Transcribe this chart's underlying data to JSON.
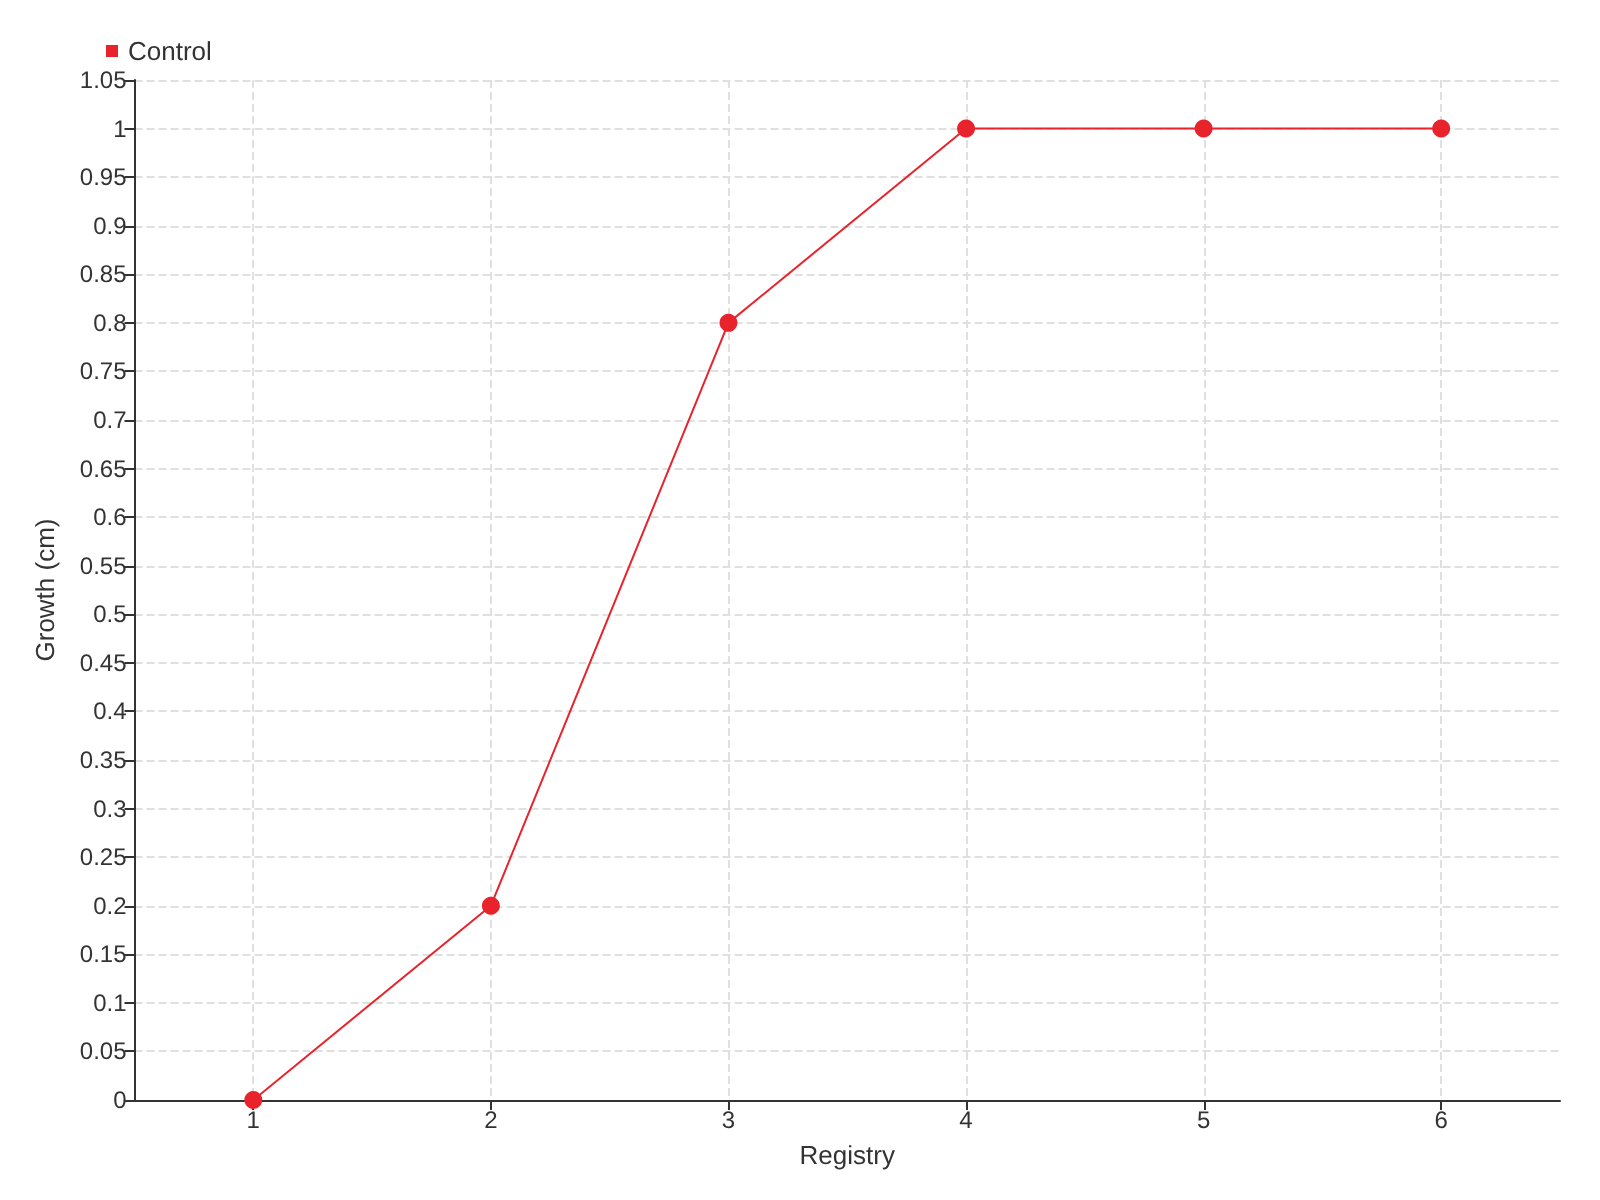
{
  "chart_data": {
    "type": "line",
    "xlabel": "Registry",
    "ylabel": "Growth (cm)",
    "x": [
      1,
      2,
      3,
      4,
      5,
      6
    ],
    "series": [
      {
        "name": "Control",
        "color": "#e8232b",
        "values": [
          0,
          0.2,
          0.8,
          1,
          1,
          1
        ]
      }
    ],
    "xlim": [
      0.5,
      6.5
    ],
    "xticks": [
      1,
      2,
      3,
      4,
      5,
      6
    ],
    "ylim": [
      0,
      1.05
    ],
    "yticks": [
      0,
      0.05,
      0.1,
      0.15,
      0.2,
      0.25,
      0.3,
      0.35,
      0.4,
      0.45,
      0.5,
      0.55,
      0.6,
      0.65,
      0.7,
      0.75,
      0.8,
      0.85,
      0.9,
      0.95,
      1,
      1.05
    ],
    "grid": true,
    "legend": "top left",
    "marker": "circle",
    "line_style": "solid"
  }
}
